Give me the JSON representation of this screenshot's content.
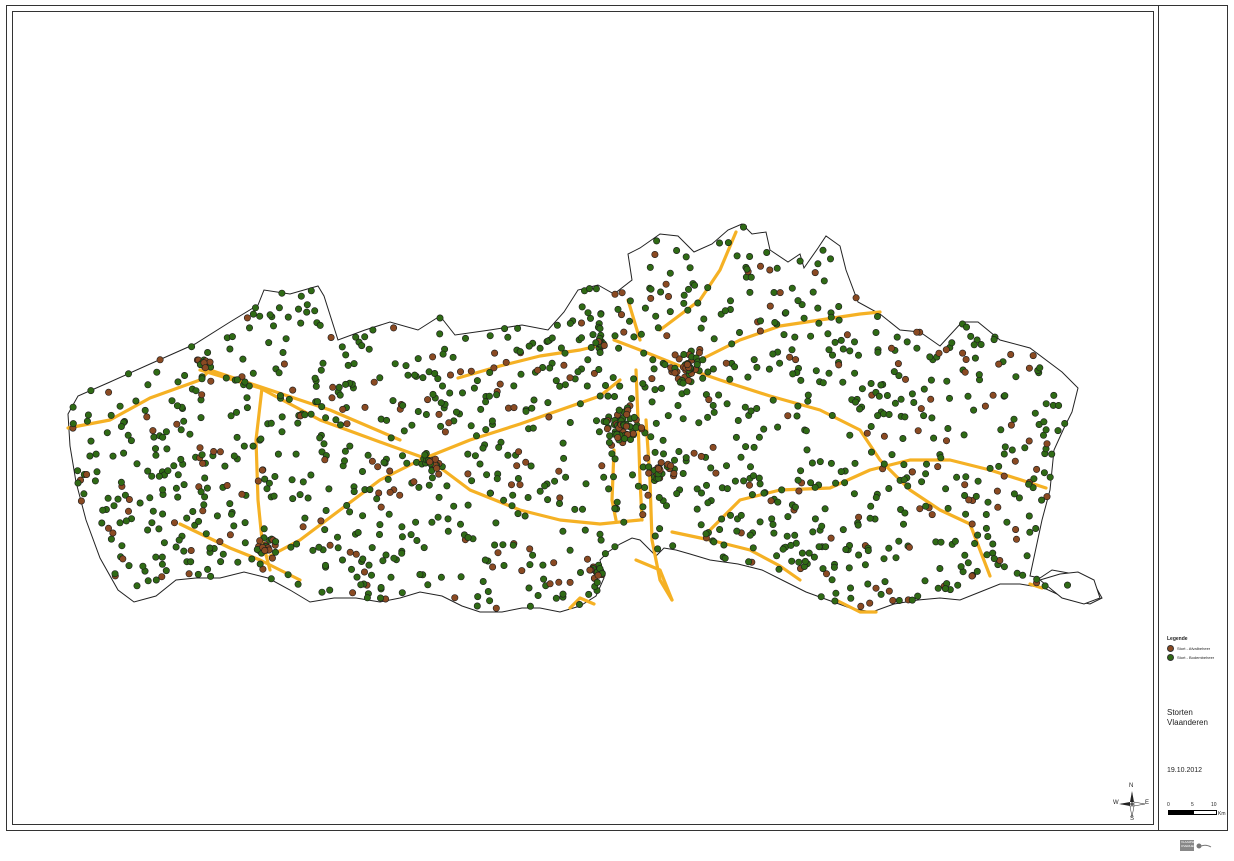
{
  "map": {
    "title": "Storten\nVlaanderen",
    "date": "19.10.2012",
    "colors": {
      "boundary": "#222222",
      "roads": "#f5b124",
      "afvalbeheer": "#8a4a22",
      "bodembeheer": "#2f6a15",
      "dot_stroke": "#1c1c1c"
    }
  },
  "legend": {
    "title": "Legende",
    "items": [
      {
        "label": "Stort - Afvalbeheer",
        "color": "#8a4a22"
      },
      {
        "label": "Stort - Bodembeheer",
        "color": "#2f6a15"
      }
    ]
  },
  "scale": {
    "ticks": [
      "0",
      "5",
      "10"
    ],
    "unit": "Km"
  },
  "compass": {
    "n": "N",
    "e": "E",
    "s": "S",
    "w": "W"
  },
  "logo": {
    "text": "VLAAMSE OVERHEID"
  }
}
